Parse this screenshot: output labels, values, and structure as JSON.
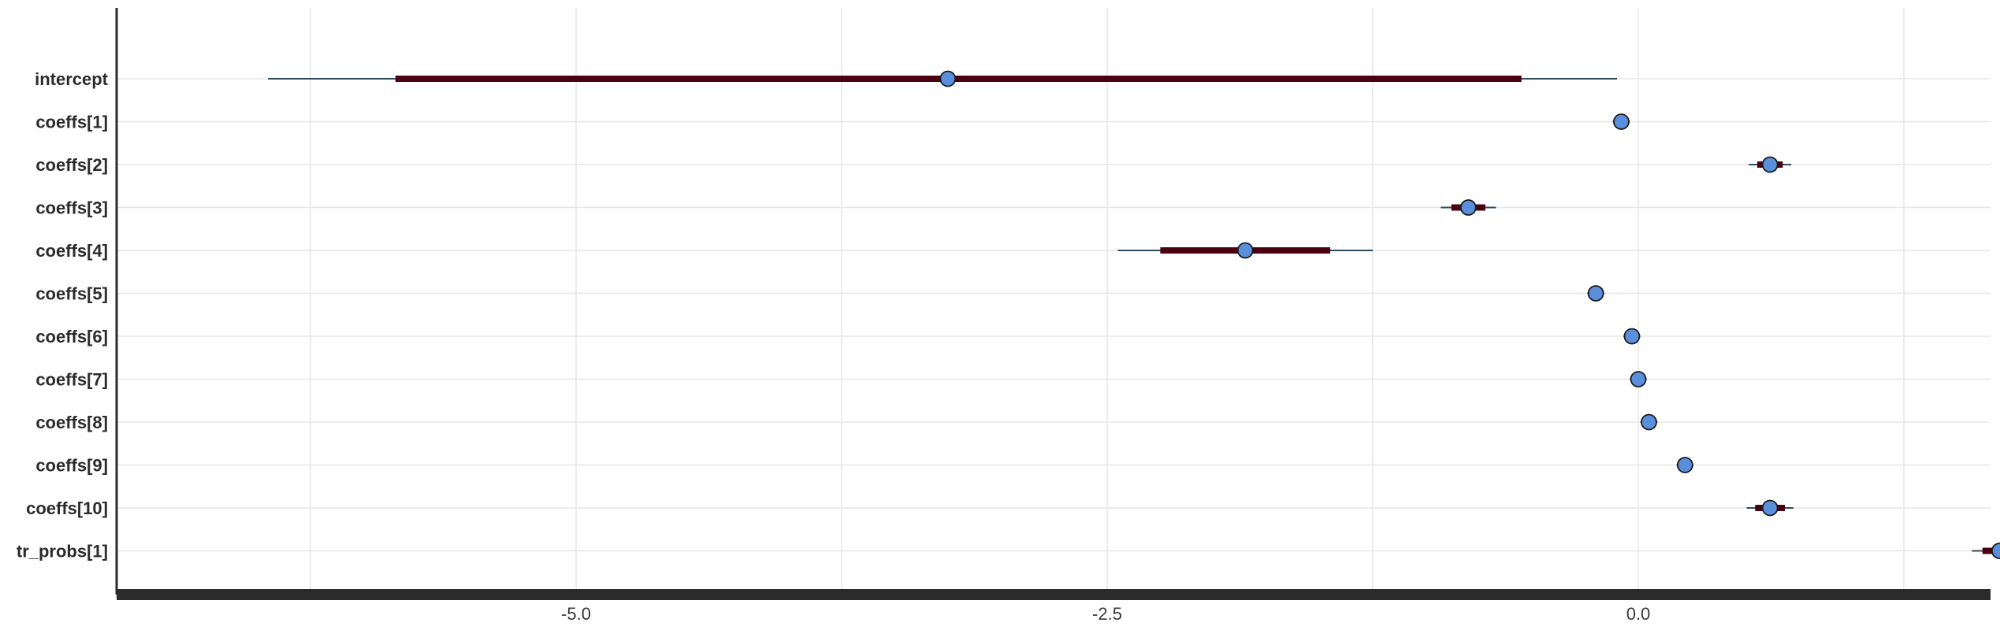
{
  "chart_data": {
    "type": "forest",
    "title": "",
    "xlabel": "",
    "ylabel": "",
    "xlim": [
      -8.2,
      3.4
    ],
    "xticks": [
      -5.0,
      -2.5,
      0.0
    ],
    "xtick_labels": [
      "-5.0",
      "-2.5",
      "0.0"
    ],
    "grid": true,
    "colors": {
      "point_fill": "#5a8fdb",
      "point_edge": "#1a1a1a",
      "thick_interval": "#4a0010",
      "thin_interval": "#2e4a5e",
      "grid": "#e6e6e6",
      "axis": "#2b2b2b"
    },
    "parameters": [
      {
        "label": "intercept",
        "mean": -3.25,
        "hdi_50": [
          -5.85,
          -0.55
        ],
        "hdi_94": [
          -6.45,
          -0.1
        ]
      },
      {
        "label": "coeffs[1]",
        "mean": -0.08,
        "hdi_50": [
          -0.1,
          -0.06
        ],
        "hdi_94": [
          -0.12,
          -0.04
        ]
      },
      {
        "label": "coeffs[2]",
        "mean": 0.62,
        "hdi_50": [
          0.56,
          0.68
        ],
        "hdi_94": [
          0.52,
          0.72
        ]
      },
      {
        "label": "coeffs[3]",
        "mean": -0.8,
        "hdi_50": [
          -0.88,
          -0.72
        ],
        "hdi_94": [
          -0.93,
          -0.67
        ]
      },
      {
        "label": "coeffs[4]",
        "mean": -1.85,
        "hdi_50": [
          -2.25,
          -1.45
        ],
        "hdi_94": [
          -2.45,
          -1.25
        ]
      },
      {
        "label": "coeffs[5]",
        "mean": -0.2,
        "hdi_50": [
          -0.22,
          -0.18
        ],
        "hdi_94": [
          -0.24,
          -0.16
        ]
      },
      {
        "label": "coeffs[6]",
        "mean": -0.03,
        "hdi_50": [
          -0.05,
          -0.01
        ],
        "hdi_94": [
          -0.07,
          0.01
        ]
      },
      {
        "label": "coeffs[7]",
        "mean": 0.0,
        "hdi_50": [
          -0.02,
          0.02
        ],
        "hdi_94": [
          -0.04,
          0.04
        ]
      },
      {
        "label": "coeffs[8]",
        "mean": 0.05,
        "hdi_50": [
          0.03,
          0.07
        ],
        "hdi_94": [
          0.01,
          0.09
        ]
      },
      {
        "label": "coeffs[9]",
        "mean": 0.22,
        "hdi_50": [
          0.2,
          0.24
        ],
        "hdi_94": [
          0.18,
          0.26
        ]
      },
      {
        "label": "coeffs[10]",
        "mean": 0.62,
        "hdi_50": [
          0.55,
          0.69
        ],
        "hdi_94": [
          0.51,
          0.73
        ]
      },
      {
        "label": "tr_probs[1]",
        "mean": 1.7,
        "hdi_50": [
          1.62,
          1.78
        ],
        "hdi_94": [
          1.57,
          1.83
        ]
      }
    ]
  }
}
